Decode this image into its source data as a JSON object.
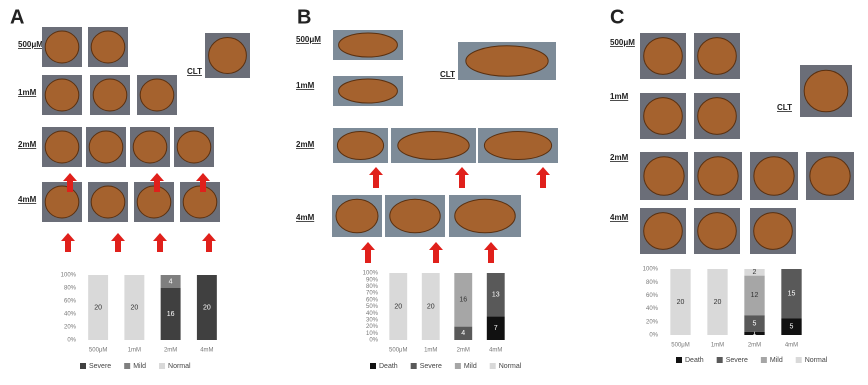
{
  "panels": [
    {
      "label": "A",
      "rows": [
        "500μM",
        "1mM",
        "2mM",
        "4mM"
      ],
      "control": "CLT"
    },
    {
      "label": "B",
      "rows": [
        "500μM",
        "1mM",
        "2mM",
        "4mM"
      ],
      "control": "CLT"
    },
    {
      "label": "C",
      "rows": [
        "500μM",
        "1mM",
        "2mM",
        "4mM"
      ],
      "control": "CLT"
    }
  ],
  "chart_data": [
    {
      "type": "bar",
      "stacked": true,
      "categories": [
        "500μM",
        "1mM",
        "2mM",
        "4mM"
      ],
      "series": [
        {
          "name": "Severe",
          "color": "#404040",
          "values": [
            0,
            0,
            16,
            20
          ]
        },
        {
          "name": "Mild",
          "color": "#7f7f7f",
          "values": [
            0,
            0,
            4,
            0
          ]
        },
        {
          "name": "Normal",
          "color": "#d9d9d9",
          "values": [
            20,
            20,
            0,
            0
          ]
        }
      ],
      "ylim": [
        0,
        20
      ],
      "yticks": [
        {
          "value": 0,
          "label": "0%"
        },
        {
          "value": 4,
          "label": "20%"
        },
        {
          "value": 8,
          "label": "40%"
        },
        {
          "value": 12,
          "label": "60%"
        },
        {
          "value": 16,
          "label": "80%"
        },
        {
          "value": 20,
          "label": "100%"
        }
      ]
    },
    {
      "type": "bar",
      "stacked": true,
      "categories": [
        "500μM",
        "1mM",
        "2mM",
        "4mM"
      ],
      "series": [
        {
          "name": "Death",
          "color": "#111111",
          "values": [
            0,
            0,
            0,
            7
          ]
        },
        {
          "name": "Severe",
          "color": "#595959",
          "values": [
            0,
            0,
            4,
            13
          ]
        },
        {
          "name": "Mild",
          "color": "#a6a6a6",
          "values": [
            0,
            0,
            16,
            0
          ]
        },
        {
          "name": "Normal",
          "color": "#d9d9d9",
          "values": [
            20,
            20,
            0,
            0
          ]
        }
      ],
      "ylim": [
        0,
        20
      ],
      "yticks": [
        {
          "value": 0,
          "label": "0%"
        },
        {
          "value": 2,
          "label": "10%"
        },
        {
          "value": 4,
          "label": "20%"
        },
        {
          "value": 6,
          "label": "30%"
        },
        {
          "value": 8,
          "label": "40%"
        },
        {
          "value": 10,
          "label": "50%"
        },
        {
          "value": 12,
          "label": "60%"
        },
        {
          "value": 14,
          "label": "70%"
        },
        {
          "value": 16,
          "label": "80%"
        },
        {
          "value": 18,
          "label": "90%"
        },
        {
          "value": 20,
          "label": "100%"
        }
      ]
    },
    {
      "type": "bar",
      "stacked": true,
      "categories": [
        "500μM",
        "1mM",
        "2mM",
        "4mM"
      ],
      "series": [
        {
          "name": "Death",
          "color": "#111111",
          "values": [
            0,
            0,
            1,
            5
          ]
        },
        {
          "name": "Severe",
          "color": "#595959",
          "values": [
            0,
            0,
            5,
            15
          ]
        },
        {
          "name": "Mild",
          "color": "#a6a6a6",
          "values": [
            0,
            0,
            12,
            0
          ]
        },
        {
          "name": "Normal",
          "color": "#d9d9d9",
          "values": [
            20,
            20,
            2,
            0
          ]
        }
      ],
      "ylim": [
        0,
        20
      ],
      "yticks": [
        {
          "value": 0,
          "label": "0%"
        },
        {
          "value": 4,
          "label": "20%"
        },
        {
          "value": 8,
          "label": "40%"
        },
        {
          "value": 12,
          "label": "60%"
        },
        {
          "value": 16,
          "label": "80%"
        },
        {
          "value": 20,
          "label": "100%"
        }
      ]
    }
  ]
}
